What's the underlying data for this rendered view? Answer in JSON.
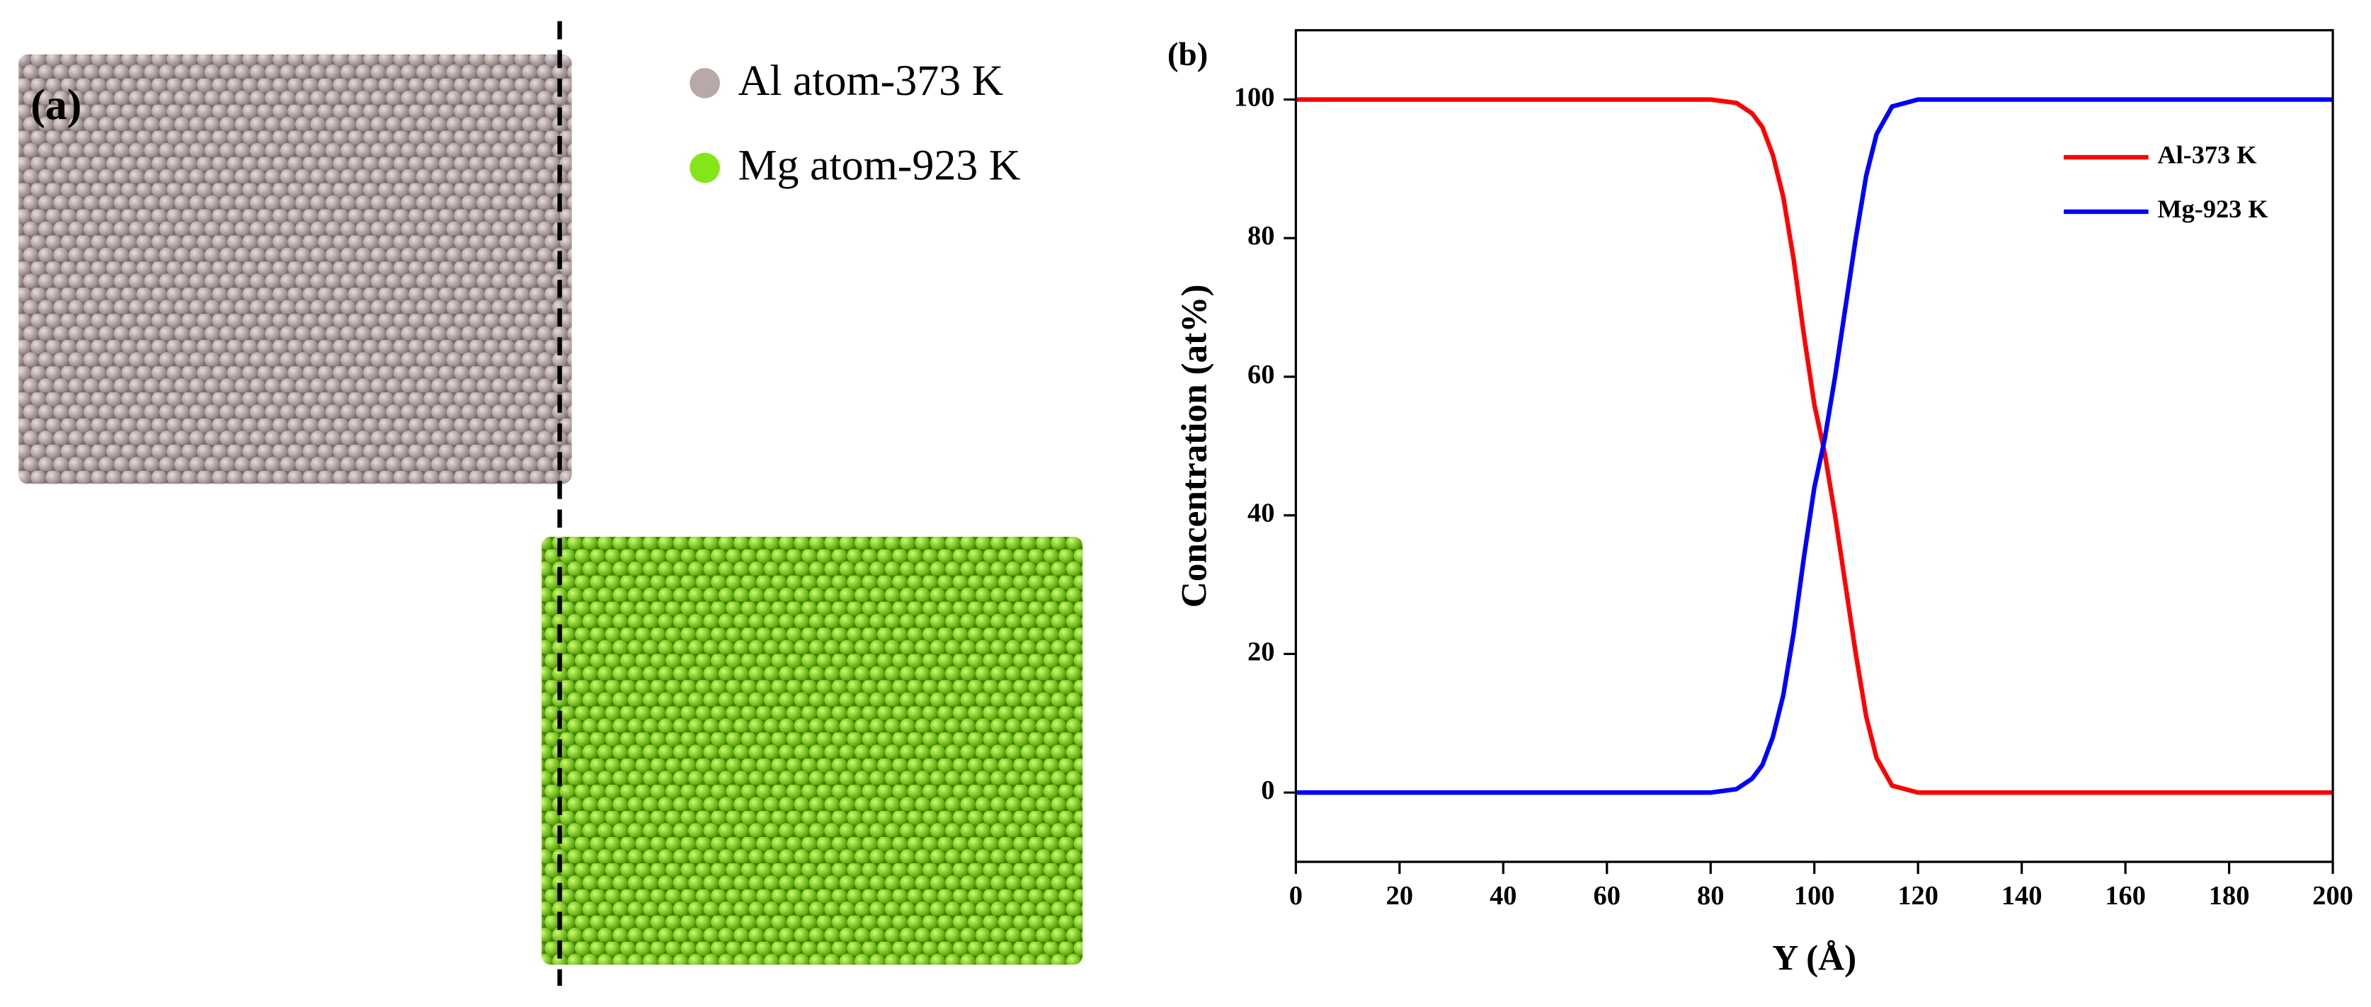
{
  "panel_a": {
    "label": "(a)",
    "legend": [
      "Al atom-373 K",
      "Mg atom-923 K"
    ]
  },
  "chart_data": {
    "type": "line",
    "label": "(b)",
    "x_label": "Y (Å)",
    "y_label": "Concentration (at%)",
    "x": [
      0,
      20,
      40,
      60,
      80,
      85,
      88,
      90,
      92,
      94,
      96,
      98,
      100,
      102,
      104,
      106,
      108,
      110,
      112,
      115,
      120,
      140,
      160,
      180,
      200
    ],
    "series": [
      {
        "name": "Al-373 K",
        "color": "#ff0000",
        "values": [
          100,
          100,
          100,
          100,
          100,
          99.5,
          98,
          96,
          92,
          86,
          77,
          66,
          56,
          49,
          40,
          30,
          20,
          11,
          5,
          1,
          0,
          0,
          0,
          0,
          0
        ]
      },
      {
        "name": "Mg-923 K",
        "color": "#0000ff",
        "values": [
          0,
          0,
          0,
          0,
          0,
          0.5,
          2,
          4,
          8,
          14,
          23,
          34,
          44,
          51,
          60,
          70,
          80,
          89,
          95,
          99,
          100,
          100,
          100,
          100,
          100
        ]
      }
    ],
    "xlim": [
      0,
      200
    ],
    "xticks": [
      0,
      20,
      40,
      60,
      80,
      100,
      120,
      140,
      160,
      180,
      200
    ],
    "ylim": [
      -10,
      110
    ],
    "yticks": [
      0,
      20,
      40,
      60,
      80,
      100
    ],
    "legend": "upper right",
    "grid": false
  }
}
